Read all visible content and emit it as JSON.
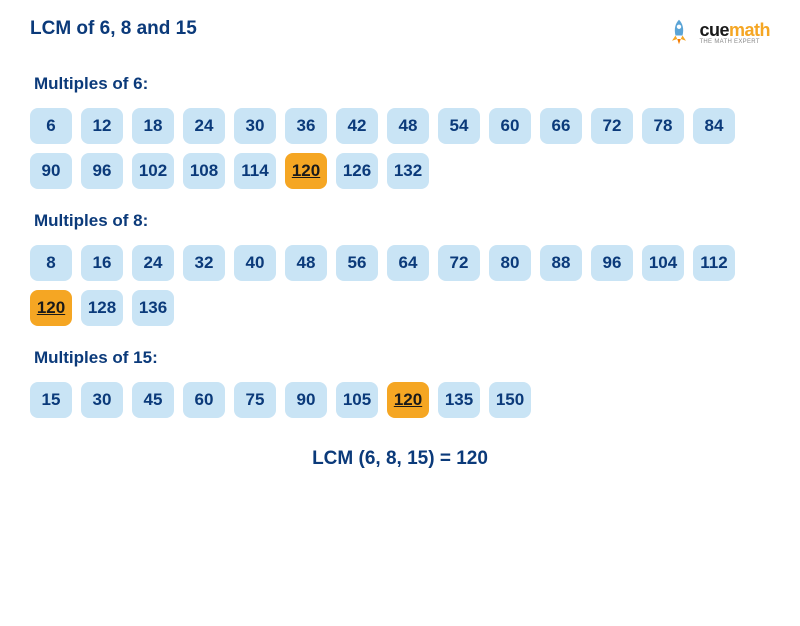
{
  "title": "LCM of 6, 8 and 15",
  "brand": {
    "prefix": "cue",
    "suffix": "math",
    "tagline": "THE MATH EXPERT"
  },
  "colors": {
    "chip_bg": "#c9e4f5",
    "chip_text": "#0b3a7a",
    "highlight_bg": "#f5a623",
    "highlight_text": "#1a1a1a",
    "heading": "#0b3a7a",
    "background": "#ffffff"
  },
  "sections": [
    {
      "title": "Multiples of 6:",
      "values": [
        6,
        12,
        18,
        24,
        30,
        36,
        42,
        48,
        54,
        60,
        66,
        72,
        78,
        84,
        90,
        96,
        102,
        108,
        114,
        120,
        126,
        132
      ],
      "highlight": 120
    },
    {
      "title": "Multiples of 8:",
      "values": [
        8,
        16,
        24,
        32,
        40,
        48,
        56,
        64,
        72,
        80,
        88,
        96,
        104,
        112,
        120,
        128,
        136
      ],
      "highlight": 120
    },
    {
      "title": "Multiples of 15:",
      "values": [
        15,
        30,
        45,
        60,
        75,
        90,
        105,
        120,
        135,
        150
      ],
      "highlight": 120
    }
  ],
  "result": "LCM (6, 8, 15) = 120"
}
